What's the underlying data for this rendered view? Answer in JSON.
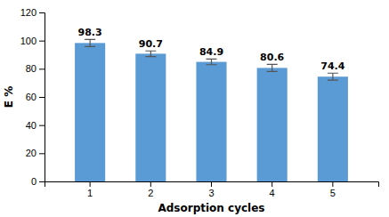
{
  "chart_data": {
    "type": "bar",
    "categories": [
      "1",
      "2",
      "3",
      "4",
      "5"
    ],
    "values": [
      98.3,
      90.7,
      84.9,
      80.6,
      74.4
    ],
    "errors": [
      2.5,
      2.0,
      2.0,
      2.5,
      2.5
    ],
    "color": "#5B9BD5",
    "xlabel": "Adsorption cycles",
    "ylabel": "E %",
    "ylim": [
      0,
      120
    ],
    "yticks": [
      0,
      20,
      40,
      60,
      80,
      100,
      120
    ],
    "data_labels": true,
    "grid": false
  }
}
